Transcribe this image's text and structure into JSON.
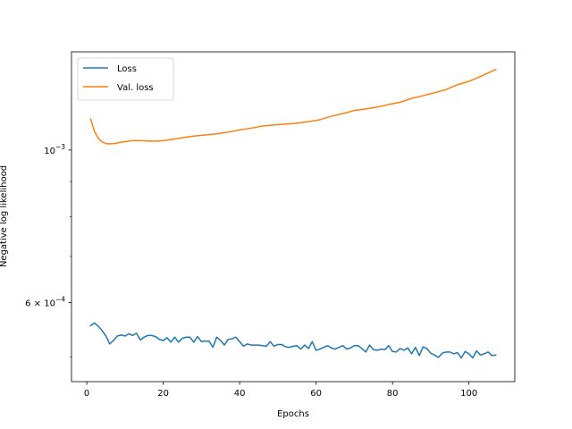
{
  "chart_data": {
    "type": "line",
    "title": "",
    "xlabel": "Epochs",
    "ylabel": "Negative log likelihood",
    "xscale": "linear",
    "yscale": "log",
    "xlim": [
      -4,
      112
    ],
    "ylim": [
      0.00046,
      0.00139
    ],
    "x_ticks": [
      {
        "value": 0,
        "label": "0"
      },
      {
        "value": 20,
        "label": "20"
      },
      {
        "value": 40,
        "label": "40"
      },
      {
        "value": 60,
        "label": "60"
      },
      {
        "value": 80,
        "label": "80"
      },
      {
        "value": 100,
        "label": "100"
      }
    ],
    "y_major_ticks": [
      {
        "value": 0.001,
        "base": "10",
        "exponent": "−3"
      },
      {
        "value": 0.0006,
        "mantissa": "6",
        "times": "×",
        "base": "10",
        "exponent": "−4"
      }
    ],
    "y_minor_ticks": [
      0.0005,
      0.0007,
      0.0008,
      0.0009
    ],
    "grid": false,
    "legend": {
      "position": "top-left",
      "entries": [
        "Loss",
        "Val. loss"
      ]
    },
    "series": [
      {
        "name": "Loss",
        "color": "#1f77b4",
        "x": [
          1,
          2,
          3,
          4,
          5,
          6,
          7,
          8,
          9,
          10,
          11,
          12,
          13,
          14,
          15,
          16,
          17,
          18,
          19,
          20,
          21,
          22,
          23,
          24,
          25,
          26,
          27,
          28,
          29,
          30,
          31,
          32,
          33,
          34,
          35,
          36,
          37,
          38,
          39,
          40,
          41,
          42,
          43,
          44,
          45,
          46,
          47,
          48,
          49,
          50,
          51,
          52,
          53,
          54,
          55,
          56,
          57,
          58,
          59,
          60,
          61,
          62,
          63,
          64,
          65,
          66,
          67,
          68,
          69,
          70,
          71,
          72,
          73,
          74,
          75,
          76,
          77,
          78,
          79,
          80,
          81,
          82,
          83,
          84,
          85,
          86,
          87,
          88,
          89,
          90,
          91,
          92,
          93,
          94,
          95,
          96,
          97,
          98,
          99,
          100,
          101,
          102,
          103,
          104,
          105,
          106,
          107
        ],
        "y": [
          0.000555,
          0.00056,
          0.000554,
          0.000546,
          0.000536,
          0.000522,
          0.000528,
          0.000536,
          0.000538,
          0.000536,
          0.00054,
          0.000537,
          0.000541,
          0.000529,
          0.000534,
          0.000537,
          0.000537,
          0.000535,
          0.00053,
          0.000528,
          0.000533,
          0.000525,
          0.000534,
          0.000525,
          0.000532,
          0.000534,
          0.000534,
          0.000525,
          0.000535,
          0.000526,
          0.000527,
          0.000527,
          0.000516,
          0.000534,
          0.000528,
          0.00052,
          0.00053,
          0.000531,
          0.000534,
          0.000526,
          0.000518,
          0.000522,
          0.00052,
          0.00052,
          0.00052,
          0.000519,
          0.000518,
          0.000526,
          0.000518,
          0.000521,
          0.000521,
          0.000517,
          0.000516,
          0.000518,
          0.000519,
          0.000513,
          0.00052,
          0.000514,
          0.000526,
          0.000511,
          0.000513,
          0.000516,
          0.000519,
          0.000515,
          0.000513,
          0.000516,
          0.000519,
          0.000513,
          0.000515,
          0.000519,
          0.000519,
          0.000514,
          0.000508,
          0.00052,
          0.000512,
          0.000511,
          0.000513,
          0.000512,
          0.000519,
          0.000509,
          0.000508,
          0.000514,
          0.000511,
          0.000515,
          0.000505,
          0.000516,
          0.000502,
          0.000517,
          0.000514,
          0.000506,
          0.000503,
          0.000499,
          0.000506,
          0.000508,
          0.000508,
          0.000505,
          0.000507,
          0.000498,
          0.000509,
          0.000505,
          0.000498,
          0.00051,
          0.000503,
          0.000505,
          0.000508,
          0.000502,
          0.000503
        ]
      },
      {
        "name": "Val. loss",
        "color": "#ff7f0e",
        "x": [
          1,
          2,
          3,
          4,
          5,
          6,
          7,
          8,
          10,
          12,
          14,
          16,
          18,
          20,
          22,
          25,
          28,
          31,
          34,
          37,
          40,
          43,
          46,
          49,
          52,
          55,
          58,
          61,
          64,
          67,
          70,
          73,
          76,
          79,
          82,
          85,
          88,
          91,
          94,
          97,
          100,
          103,
          107
        ],
        "y": [
          0.00111,
          0.001065,
          0.00104,
          0.001028,
          0.001022,
          0.001021,
          0.001022,
          0.001024,
          0.001029,
          0.001032,
          0.001032,
          0.001031,
          0.00103,
          0.001032,
          0.001036,
          0.001042,
          0.001048,
          0.001052,
          0.001056,
          0.001062,
          0.00107,
          0.001076,
          0.001084,
          0.001088,
          0.001091,
          0.001094,
          0.0011,
          0.001107,
          0.00112,
          0.00113,
          0.001142,
          0.001148,
          0.001155,
          0.001165,
          0.001174,
          0.001189,
          0.0012,
          0.001212,
          0.001225,
          0.001245,
          0.001259,
          0.00128,
          0.00131
        ]
      }
    ]
  }
}
